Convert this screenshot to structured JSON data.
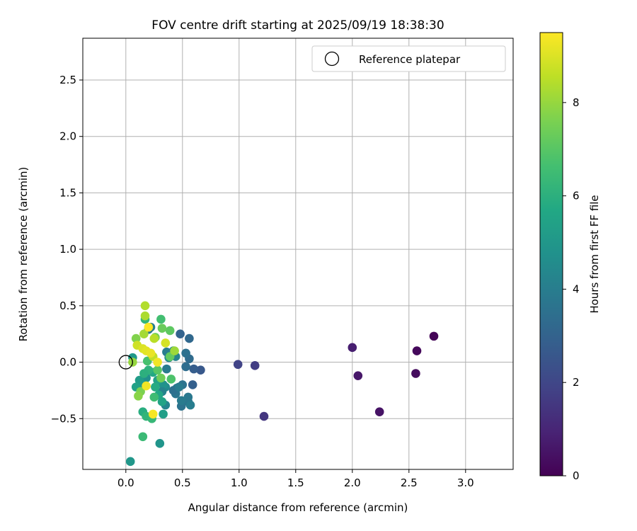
{
  "chart_data": {
    "type": "scatter",
    "title": "FOV centre drift starting at 2025/09/19 18:38:30",
    "xlabel": "Angular distance from reference (arcmin)",
    "ylabel": "Rotation from reference (arcmin)",
    "xlim": [
      -0.38,
      3.42
    ],
    "ylim": [
      -0.95,
      2.87
    ],
    "xticks": [
      0.0,
      0.5,
      1.0,
      1.5,
      2.0,
      2.5,
      3.0
    ],
    "xtick_labels": [
      "0.0",
      "0.5",
      "1.0",
      "1.5",
      "2.0",
      "2.5",
      "3.0"
    ],
    "yticks": [
      -0.5,
      0.0,
      0.5,
      1.0,
      1.5,
      2.0,
      2.5
    ],
    "ytick_labels": [
      "−0.5",
      "0.0",
      "0.5",
      "1.0",
      "1.5",
      "2.0",
      "2.5"
    ],
    "grid": true,
    "legend": {
      "position": "top-right",
      "label": "Reference platepar"
    },
    "reference_point": {
      "x": 0.0,
      "y": 0.0
    },
    "colorbar": {
      "label": "Hours from first FF file",
      "range": [
        0,
        9.5
      ],
      "colormap": "viridis",
      "ticks": [
        0,
        2,
        4,
        6,
        8
      ],
      "tick_labels": [
        "0",
        "2",
        "4",
        "6",
        "8"
      ]
    },
    "points": [
      {
        "x": 2.72,
        "y": 0.23,
        "c": 0.1
      },
      {
        "x": 2.57,
        "y": 0.1,
        "c": 0.2
      },
      {
        "x": 2.56,
        "y": -0.1,
        "c": 0.3
      },
      {
        "x": 2.24,
        "y": -0.44,
        "c": 0.5
      },
      {
        "x": 2.05,
        "y": -0.12,
        "c": 0.6
      },
      {
        "x": 2.0,
        "y": 0.13,
        "c": 0.8
      },
      {
        "x": 1.22,
        "y": -0.48,
        "c": 1.5
      },
      {
        "x": 1.14,
        "y": -0.03,
        "c": 1.7
      },
      {
        "x": 0.99,
        "y": -0.02,
        "c": 1.9
      },
      {
        "x": 0.66,
        "y": -0.07,
        "c": 2.6
      },
      {
        "x": 0.6,
        "y": -0.06,
        "c": 2.8
      },
      {
        "x": 0.59,
        "y": -0.2,
        "c": 2.9
      },
      {
        "x": 0.56,
        "y": 0.21,
        "c": 3.2
      },
      {
        "x": 0.56,
        "y": 0.03,
        "c": 3.3
      },
      {
        "x": 0.53,
        "y": -0.04,
        "c": 3.4
      },
      {
        "x": 0.48,
        "y": 0.25,
        "c": 3.0
      },
      {
        "x": 0.53,
        "y": 0.08,
        "c": 3.5
      },
      {
        "x": 0.49,
        "y": -0.39,
        "c": 3.6
      },
      {
        "x": 0.55,
        "y": -0.35,
        "c": 3.7
      },
      {
        "x": 0.57,
        "y": -0.38,
        "c": 4.0
      },
      {
        "x": 0.55,
        "y": -0.31,
        "c": 3.8
      },
      {
        "x": 0.49,
        "y": -0.34,
        "c": 3.9
      },
      {
        "x": 0.5,
        "y": -0.2,
        "c": 3.6
      },
      {
        "x": 0.45,
        "y": -0.23,
        "c": 3.8
      },
      {
        "x": 0.44,
        "y": -0.28,
        "c": 3.7
      },
      {
        "x": 0.42,
        "y": -0.25,
        "c": 3.5
      },
      {
        "x": 0.47,
        "y": -0.22,
        "c": 3.9
      },
      {
        "x": 0.44,
        "y": 0.05,
        "c": 4.2
      },
      {
        "x": 0.42,
        "y": 0.1,
        "c": 4.4
      },
      {
        "x": 0.38,
        "y": 0.04,
        "c": 4.6
      },
      {
        "x": 0.36,
        "y": 0.09,
        "c": 4.0
      },
      {
        "x": 0.36,
        "y": -0.06,
        "c": 3.9
      },
      {
        "x": 0.35,
        "y": -0.38,
        "c": 4.3
      },
      {
        "x": 0.35,
        "y": -0.22,
        "c": 4.5
      },
      {
        "x": 0.33,
        "y": -0.2,
        "c": 4.8
      },
      {
        "x": 0.32,
        "y": -0.26,
        "c": 4.2
      },
      {
        "x": 0.3,
        "y": -0.72,
        "c": 4.9
      },
      {
        "x": 0.33,
        "y": -0.46,
        "c": 5.3
      },
      {
        "x": 0.32,
        "y": -0.35,
        "c": 5.5
      },
      {
        "x": 0.29,
        "y": -0.29,
        "c": 5.6
      },
      {
        "x": 0.28,
        "y": -0.16,
        "c": 5.4
      },
      {
        "x": 0.26,
        "y": -0.22,
        "c": 5.8
      },
      {
        "x": 0.24,
        "y": -0.09,
        "c": 5.7
      },
      {
        "x": 0.22,
        "y": 0.31,
        "c": 4.1
      },
      {
        "x": 0.2,
        "y": 0.29,
        "c": 3.8
      },
      {
        "x": 0.18,
        "y": -0.14,
        "c": 4.7
      },
      {
        "x": 0.15,
        "y": -0.2,
        "c": 5.0
      },
      {
        "x": 0.12,
        "y": -0.16,
        "c": 5.2
      },
      {
        "x": 0.09,
        "y": -0.22,
        "c": 5.4
      },
      {
        "x": 0.06,
        "y": 0.04,
        "c": 5.1
      },
      {
        "x": 0.04,
        "y": -0.88,
        "c": 5.0
      },
      {
        "x": 0.15,
        "y": -0.44,
        "c": 5.9
      },
      {
        "x": 0.18,
        "y": -0.48,
        "c": 6.2
      },
      {
        "x": 0.23,
        "y": -0.5,
        "c": 6.3
      },
      {
        "x": 0.15,
        "y": -0.66,
        "c": 6.4
      },
      {
        "x": 0.25,
        "y": -0.31,
        "c": 6.5
      },
      {
        "x": 0.2,
        "y": -0.07,
        "c": 6.1
      },
      {
        "x": 0.16,
        "y": -0.1,
        "c": 6.0
      },
      {
        "x": 0.19,
        "y": 0.01,
        "c": 6.7
      },
      {
        "x": 0.31,
        "y": 0.38,
        "c": 6.6
      },
      {
        "x": 0.17,
        "y": 0.38,
        "c": 6.2
      },
      {
        "x": 0.39,
        "y": 0.28,
        "c": 7.1
      },
      {
        "x": 0.32,
        "y": 0.3,
        "c": 7.3
      },
      {
        "x": 0.26,
        "y": 0.22,
        "c": 7.5
      },
      {
        "x": 0.39,
        "y": 0.05,
        "c": 7.2
      },
      {
        "x": 0.4,
        "y": -0.15,
        "c": 6.8
      },
      {
        "x": 0.31,
        "y": -0.14,
        "c": 7.4
      },
      {
        "x": 0.28,
        "y": -0.07,
        "c": 7.0
      },
      {
        "x": 0.13,
        "y": -0.26,
        "c": 7.6
      },
      {
        "x": 0.11,
        "y": -0.3,
        "c": 7.8
      },
      {
        "x": 0.09,
        "y": 0.21,
        "c": 7.7
      },
      {
        "x": 0.06,
        "y": 0.0,
        "c": 8.0
      },
      {
        "x": 0.16,
        "y": 0.25,
        "c": 8.2
      },
      {
        "x": 0.17,
        "y": 0.41,
        "c": 8.3
      },
      {
        "x": 0.17,
        "y": 0.5,
        "c": 8.4
      },
      {
        "x": 0.24,
        "y": 0.05,
        "c": 8.6
      },
      {
        "x": 0.25,
        "y": 0.21,
        "c": 8.5
      },
      {
        "x": 0.43,
        "y": 0.1,
        "c": 8.1
      },
      {
        "x": 0.35,
        "y": 0.17,
        "c": 8.9
      },
      {
        "x": 0.1,
        "y": 0.15,
        "c": 8.8
      },
      {
        "x": 0.15,
        "y": 0.12,
        "c": 9.0
      },
      {
        "x": 0.18,
        "y": 0.1,
        "c": 9.1
      },
      {
        "x": 0.22,
        "y": 0.08,
        "c": 9.2
      },
      {
        "x": 0.28,
        "y": 0.0,
        "c": 9.3
      },
      {
        "x": 0.18,
        "y": -0.21,
        "c": 9.3
      },
      {
        "x": 0.24,
        "y": -0.46,
        "c": 9.4
      },
      {
        "x": 0.2,
        "y": 0.31,
        "c": 9.5
      }
    ]
  }
}
